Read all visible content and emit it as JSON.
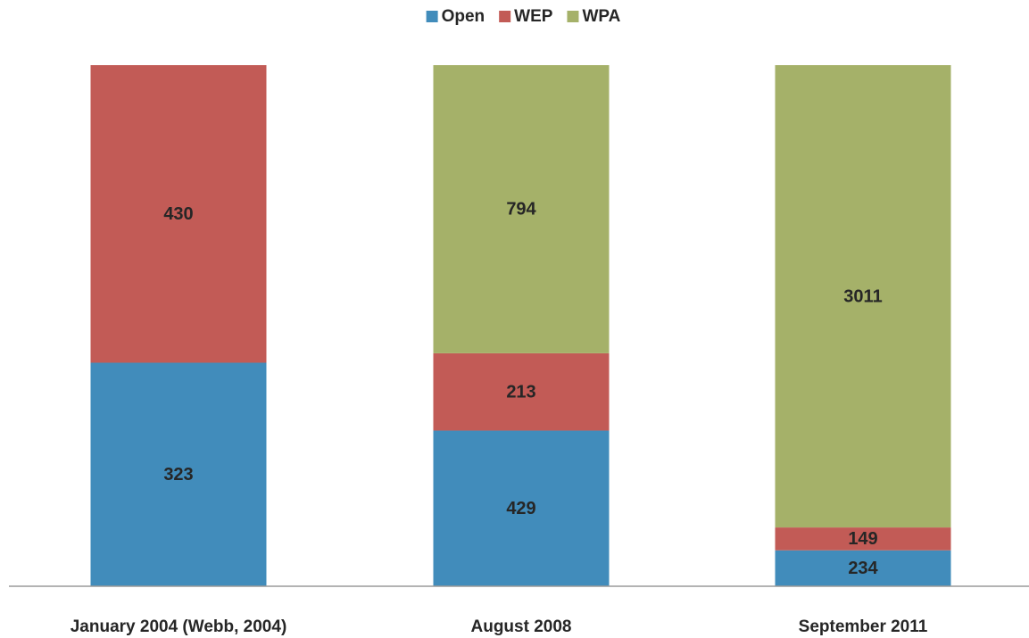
{
  "chart_data": {
    "type": "bar",
    "stack": "percent",
    "legend": "top",
    "categories": [
      "January 2004 (Webb, 2004)",
      "August 2008",
      "September 2011"
    ],
    "series": [
      {
        "name": "Open",
        "color": "#418cbb",
        "values": [
          323,
          429,
          234
        ]
      },
      {
        "name": "WEP",
        "color": "#c25b56",
        "values": [
          430,
          213,
          149
        ]
      },
      {
        "name": "WPA",
        "color": "#a5b169",
        "values": [
          null,
          794,
          3011
        ]
      }
    ]
  }
}
